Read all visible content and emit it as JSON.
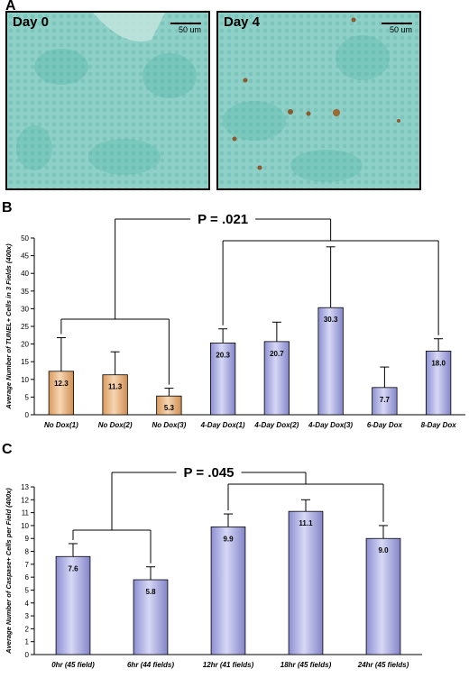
{
  "panels": {
    "a": {
      "letter": "A",
      "images": [
        {
          "label": "Day 0",
          "scale": "50 um"
        },
        {
          "label": "Day 4",
          "scale": "50 um"
        }
      ]
    },
    "b": {
      "letter": "B"
    },
    "c": {
      "letter": "C"
    }
  },
  "colors": {
    "orange_bar": "#e8b07a",
    "blue_bar": "#a9abdf",
    "bar_stroke": "#000000"
  },
  "chart_data": [
    {
      "type": "bar",
      "panel": "B",
      "categories": [
        "No Dox(1)",
        "No Dox(2)",
        "No Dox(3)",
        "4-Day Dox(1)",
        "4-Day Dox(2)",
        "4-Day Dox(3)",
        "6-Day Dox",
        "8-Day Dox"
      ],
      "values": [
        12.3,
        11.3,
        5.3,
        20.3,
        20.7,
        30.3,
        7.7,
        18.0
      ],
      "error_upper": [
        21.8,
        17.8,
        7.5,
        24.3,
        26.2,
        47.5,
        13.5,
        21.5
      ],
      "value_labels": [
        "12.3",
        "11.3",
        "5.3",
        "20.3",
        "20.7",
        "30.3",
        "7.7",
        "18.0"
      ],
      "bar_colors": [
        "orange",
        "orange",
        "orange",
        "blue",
        "blue",
        "blue",
        "blue",
        "blue"
      ],
      "ylabel": "Average Number of TUNEL+ Cells in 3 Fields (400x)",
      "ylim": [
        0,
        50
      ],
      "yticks": [
        "0",
        "5",
        "10",
        "15",
        "20",
        "25",
        "30",
        "35",
        "40",
        "45",
        "50"
      ],
      "annotation": {
        "text": "P = .021",
        "left_group": [
          0,
          2
        ],
        "right_group": [
          3,
          7
        ]
      },
      "grid": false
    },
    {
      "type": "bar",
      "panel": "C",
      "categories": [
        "0hr (45 field)",
        "6hr (44 fields)",
        "12hr (41 fields)",
        "18hr (45 fields)",
        "24hr (45 fields)"
      ],
      "values": [
        7.6,
        5.8,
        9.9,
        11.1,
        9.0
      ],
      "error_upper": [
        8.6,
        6.8,
        10.9,
        12.0,
        10.0
      ],
      "value_labels": [
        "7.6",
        "5.8",
        "9.9",
        "11.1",
        "9.0"
      ],
      "bar_colors": [
        "blue",
        "blue",
        "blue",
        "blue",
        "blue"
      ],
      "ylabel": "Average Number of Caspase+ Cells per Field (400x)",
      "ylim": [
        0,
        13
      ],
      "yticks": [
        "0",
        "1",
        "2",
        "3",
        "4",
        "5",
        "6",
        "7",
        "8",
        "9",
        "10",
        "11",
        "12",
        "13"
      ],
      "annotation": {
        "text": "P = .045",
        "left_group": [
          0,
          1
        ],
        "right_group": [
          2,
          4
        ]
      },
      "grid": false
    }
  ]
}
